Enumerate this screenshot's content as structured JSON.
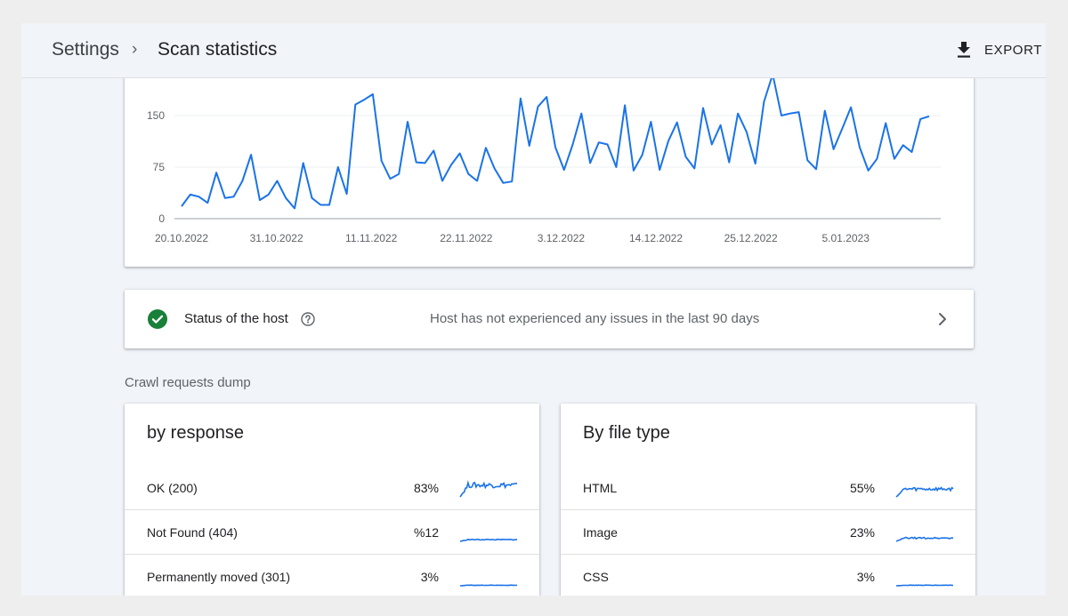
{
  "header": {
    "breadcrumb_parent": "Settings",
    "breadcrumb_separator": "›",
    "title": "Scan statistics",
    "export_label": "EXPORT"
  },
  "chart_data": {
    "type": "line",
    "title": "",
    "xlabel": "",
    "ylabel": "",
    "y_ticks": [
      "0",
      "75",
      "150"
    ],
    "x_ticks": [
      "20.10.2022",
      "31.10.2022",
      "11.11.2022",
      "22.11.2022",
      "3.12.2022",
      "14.12.2022",
      "25.12.2022",
      "5.01.2023"
    ],
    "ylim": [
      0,
      210
    ],
    "x_start_label": "20.10.2022",
    "color": "#1a73e8",
    "values": [
      18,
      35,
      32,
      23,
      67,
      30,
      32,
      55,
      93,
      27,
      35,
      55,
      30,
      15,
      81,
      30,
      20,
      20,
      75,
      36,
      166,
      173,
      181,
      84,
      58,
      65,
      141,
      82,
      81,
      99,
      55,
      78,
      95,
      65,
      55,
      103,
      73,
      52,
      54,
      175,
      106,
      163,
      177,
      104,
      71,
      108,
      153,
      81,
      111,
      108,
      75,
      165,
      70,
      93,
      141,
      71,
      113,
      140,
      90,
      73,
      161,
      108,
      136,
      82,
      153,
      126,
      80,
      170,
      210,
      150,
      153,
      155,
      85,
      72,
      157,
      101,
      131,
      162,
      104,
      70,
      87,
      139,
      87,
      107,
      97,
      145,
      149
    ]
  },
  "host_status": {
    "label": "Status of the host",
    "message": "Host has not experienced any issues in the last 90 days",
    "status_color": "#188038"
  },
  "section_label": "Crawl requests dump",
  "by_response": {
    "title": "by response",
    "rows": [
      {
        "label": "OK (200)",
        "percent": "83%",
        "level": 0.83
      },
      {
        "label": "Not Found (404)",
        "percent": "%12",
        "level": 0.12
      },
      {
        "label": "Permanently moved (301)",
        "percent": "3%",
        "level": 0.03
      }
    ]
  },
  "by_file_type": {
    "title": "By file type",
    "rows": [
      {
        "label": "HTML",
        "percent": "55%",
        "level": 0.55
      },
      {
        "label": "Image",
        "percent": "23%",
        "level": 0.23
      },
      {
        "label": "CSS",
        "percent": "3%",
        "level": 0.03
      }
    ]
  },
  "icons": {
    "export": "download-icon",
    "status": "check-circle-icon",
    "help": "help-icon",
    "chevron": "chevron-right-icon"
  }
}
